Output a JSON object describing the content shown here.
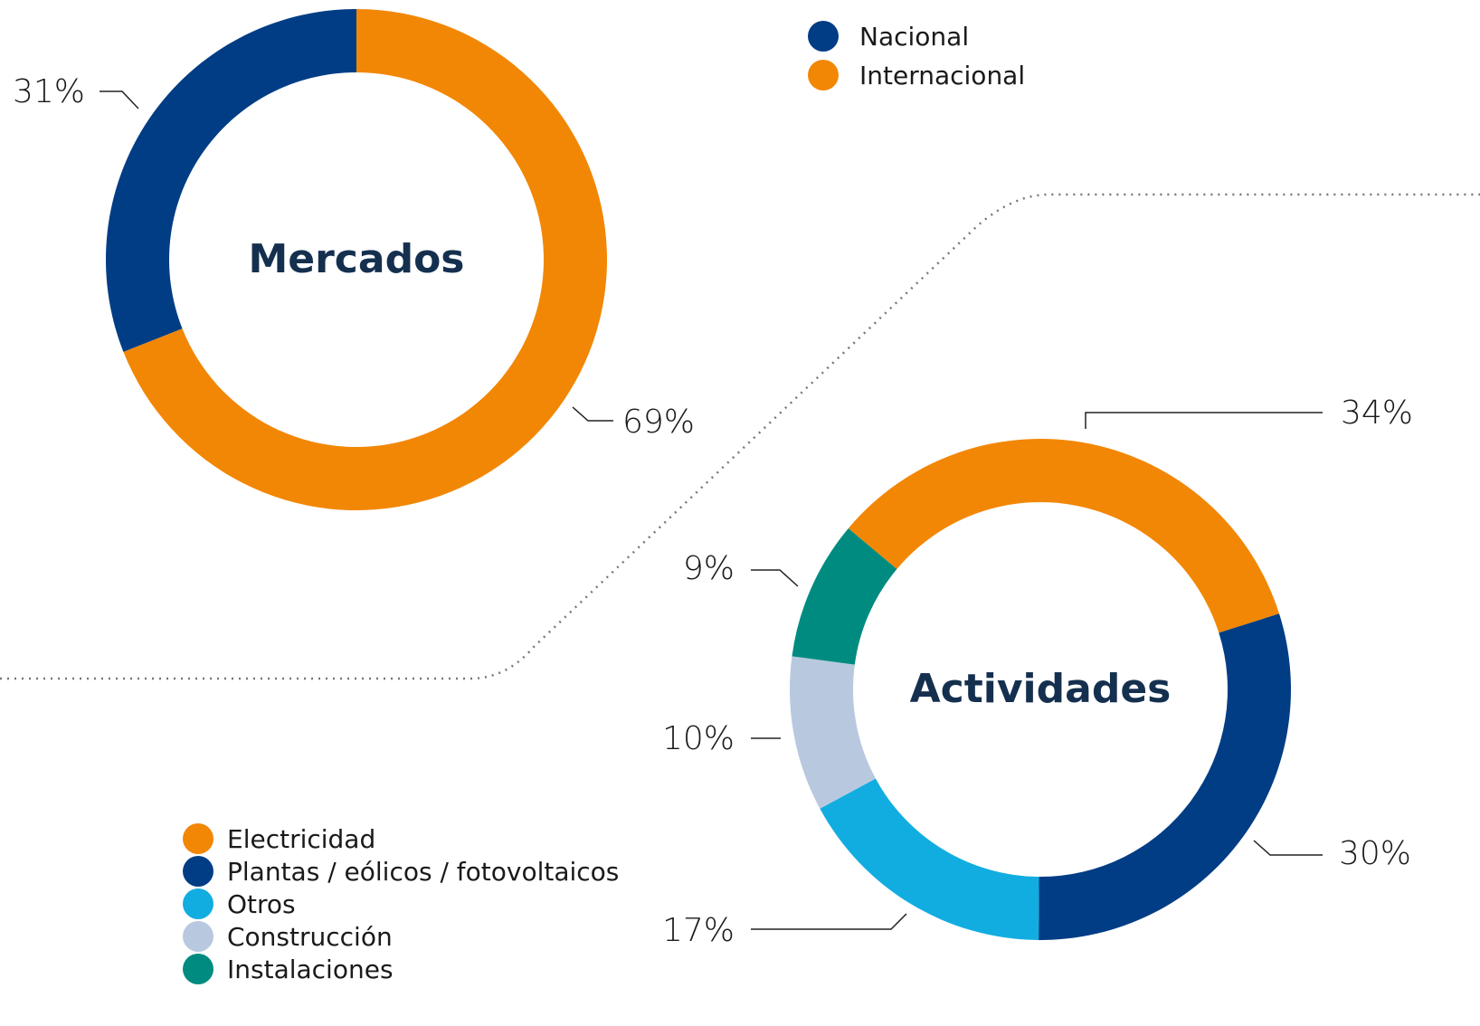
{
  "chart_data": [
    {
      "type": "donut",
      "title": "Mercados",
      "categories": [
        "Nacional",
        "Internacional"
      ],
      "values": [
        31,
        69
      ],
      "value_labels": [
        "31%",
        "69%"
      ],
      "colors": [
        "#003d85",
        "#f28705"
      ]
    },
    {
      "type": "donut",
      "title": "Actividades",
      "categories": [
        "Electricidad",
        "Plantas / eólicos / fotovoltaicos",
        "Otros",
        "Construcción",
        "Instalaciones"
      ],
      "values": [
        34,
        30,
        17,
        10,
        9
      ],
      "value_labels": [
        "34%",
        "30%",
        "17%",
        "10%",
        "9%"
      ],
      "colors": [
        "#f28705",
        "#003d85",
        "#12ade0",
        "#b8c9df",
        "#008b80"
      ]
    }
  ]
}
